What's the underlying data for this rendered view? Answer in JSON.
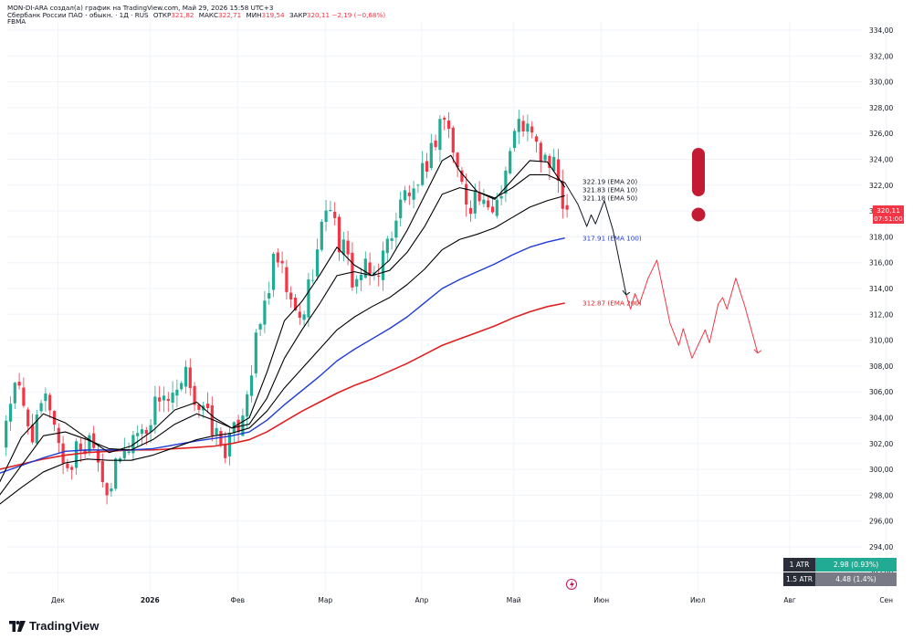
{
  "header": {
    "line1": "MON-DI-ARA создал(а) график на TradingView.com, Май 29, 2026 15:58 UTC+3",
    "symbol": "Сбербанк России ПАО - обыкн. · 1Д · RUS",
    "open_label": "ОТКР",
    "open": "321,82",
    "high_label": "МАКС",
    "high": "322,71",
    "low_label": "МИН",
    "low": "319,54",
    "close_label": "ЗАКР",
    "close": "320,11",
    "change": "−2,19 (−0,68%)",
    "indicator": "FBMA"
  },
  "price_label": {
    "value": "320,11",
    "countdown": "07:51:00"
  },
  "atr": [
    {
      "label": "1 ATR",
      "value": "2.98 (0.93%)",
      "color": "#22ab94"
    },
    {
      "label": "1.5 ATR",
      "value": "4.48 (1.4%)",
      "color": "#787b86"
    }
  ],
  "brand": "TradingView",
  "colors": {
    "up": "#22ab94",
    "down": "#f23645",
    "ema100": "#1f3bd6",
    "ema200": "#e02020",
    "ema_short": "#000000",
    "exclamation": "#c21b33"
  },
  "chart_data": {
    "type": "candlestick",
    "symbol": "Сбербанк России ПАО - обыкн.",
    "y_ticks": [
      "292,00",
      "294,00",
      "296,00",
      "298,00",
      "300,00",
      "302,00",
      "304,00",
      "306,00",
      "308,00",
      "310,00",
      "312,00",
      "314,00",
      "316,00",
      "318,00",
      "320,00",
      "322,00",
      "324,00",
      "326,00",
      "328,00",
      "330,00",
      "332,00",
      "334,00"
    ],
    "ylim": [
      290.5,
      335.4
    ],
    "x_ticks": [
      {
        "label": "Дек",
        "bold": false,
        "day": 0
      },
      {
        "label": "2026",
        "bold": true,
        "day": 21
      },
      {
        "label": "Фев",
        "bold": false,
        "day": 41
      },
      {
        "label": "Мар",
        "bold": false,
        "day": 61
      },
      {
        "label": "Апр",
        "bold": false,
        "day": 83
      },
      {
        "label": "Май",
        "bold": false,
        "day": 104
      },
      {
        "label": "Июн",
        "bold": false,
        "day": 124
      },
      {
        "label": "Июл",
        "bold": false,
        "day": 146
      },
      {
        "label": "Авг",
        "bold": false,
        "day": 167
      },
      {
        "label": "Сен",
        "bold": false,
        "day": 189
      }
    ],
    "series": [
      {
        "name": "EMA 10",
        "last": 321.83,
        "label": "321.83 (EMA 10)"
      },
      {
        "name": "EMA 20",
        "last": 322.19,
        "label": "322.19 (EMA 20)"
      },
      {
        "name": "EMA 50",
        "last": 321.18,
        "label": "321.18 (EMA 50)"
      },
      {
        "name": "EMA 100",
        "last": 317.91,
        "label": "317.91 (EMA 100)"
      },
      {
        "name": "EMA 200",
        "last": 312.87,
        "label": "312.87 (EMA 200)"
      }
    ],
    "price_path": [
      [
        -10,
        299.2
      ],
      [
        -8,
        297
      ],
      [
        -7,
        296.3
      ],
      [
        -5,
        301
      ],
      [
        -3,
        305
      ],
      [
        -1,
        306.5
      ],
      [
        1,
        304
      ],
      [
        3,
        302.5
      ],
      [
        5,
        305.5
      ],
      [
        7,
        304.8
      ],
      [
        9,
        301
      ],
      [
        11,
        300
      ],
      [
        13,
        302
      ],
      [
        15,
        301.5
      ],
      [
        16,
        303.5
      ],
      [
        18,
        300
      ],
      [
        20,
        298.2
      ],
      [
        22,
        300.5
      ],
      [
        24,
        301.5
      ],
      [
        26,
        303
      ],
      [
        28,
        302.8
      ],
      [
        30,
        304.6
      ],
      [
        32,
        306.2
      ],
      [
        34,
        305
      ],
      [
        36,
        305.8
      ],
      [
        38,
        307.5
      ],
      [
        40,
        305
      ],
      [
        42,
        304.2
      ],
      [
        44,
        303
      ],
      [
        46,
        301.5
      ],
      [
        48,
        302.3
      ],
      [
        50,
        304
      ],
      [
        52,
        307
      ],
      [
        54,
        310.5
      ],
      [
        56,
        313.5
      ],
      [
        58,
        316.5
      ],
      [
        60,
        314.5
      ],
      [
        62,
        312
      ],
      [
        64,
        311.5
      ],
      [
        66,
        315
      ],
      [
        68,
        317.5
      ],
      [
        70,
        321.5
      ],
      [
        72,
        318
      ],
      [
        74,
        316.5
      ],
      [
        76,
        314.3
      ],
      [
        78,
        315.5
      ],
      [
        80,
        314.8
      ],
      [
        82,
        316
      ],
      [
        84,
        318
      ],
      [
        86,
        320
      ],
      [
        88,
        321.8
      ],
      [
        90,
        320.5
      ],
      [
        92,
        323.5
      ],
      [
        94,
        325
      ],
      [
        96,
        327.8
      ],
      [
        98,
        325.5
      ],
      [
        100,
        322.5
      ],
      [
        102,
        320.5
      ],
      [
        104,
        321.5
      ],
      [
        106,
        319.5
      ],
      [
        108,
        320.5
      ],
      [
        110,
        322.5
      ],
      [
        112,
        325.5
      ],
      [
        114,
        327
      ],
      [
        116,
        326
      ],
      [
        118,
        324.5
      ],
      [
        120,
        323.8
      ],
      [
        122,
        323
      ],
      [
        123,
        321.8
      ],
      [
        124,
        320.1
      ]
    ],
    "ema10_path": [
      [
        -10,
        297
      ],
      [
        -5,
        299
      ],
      [
        0,
        302.5
      ],
      [
        5,
        304.3
      ],
      [
        10,
        303.6
      ],
      [
        15,
        302.4
      ],
      [
        20,
        301.3
      ],
      [
        25,
        301.8
      ],
      [
        30,
        303
      ],
      [
        35,
        304.6
      ],
      [
        40,
        305.2
      ],
      [
        44,
        304
      ],
      [
        48,
        303.2
      ],
      [
        52,
        304
      ],
      [
        56,
        307.5
      ],
      [
        60,
        311.5
      ],
      [
        64,
        313
      ],
      [
        68,
        315
      ],
      [
        72,
        317.2
      ],
      [
        76,
        315.8
      ],
      [
        80,
        315
      ],
      [
        84,
        316.2
      ],
      [
        88,
        318.5
      ],
      [
        92,
        321.2
      ],
      [
        96,
        323.9
      ],
      [
        98,
        324.3
      ],
      [
        100,
        323.1
      ],
      [
        104,
        321.5
      ],
      [
        108,
        320.9
      ],
      [
        112,
        322.4
      ],
      [
        116,
        323.9
      ],
      [
        120,
        323.8
      ],
      [
        124,
        321.83
      ]
    ],
    "ema20_path": [
      [
        -10,
        296
      ],
      [
        -5,
        298
      ],
      [
        0,
        300.3
      ],
      [
        5,
        302.6
      ],
      [
        10,
        302.9
      ],
      [
        15,
        302.3
      ],
      [
        20,
        301.6
      ],
      [
        25,
        301.5
      ],
      [
        30,
        302.3
      ],
      [
        35,
        303.5
      ],
      [
        40,
        304.3
      ],
      [
        44,
        303.8
      ],
      [
        48,
        303.2
      ],
      [
        52,
        303.5
      ],
      [
        56,
        305.5
      ],
      [
        60,
        308.6
      ],
      [
        64,
        310.8
      ],
      [
        68,
        312.8
      ],
      [
        72,
        315
      ],
      [
        76,
        315.3
      ],
      [
        80,
        315
      ],
      [
        84,
        315.4
      ],
      [
        88,
        316.8
      ],
      [
        92,
        318.8
      ],
      [
        96,
        321.3
      ],
      [
        100,
        321.8
      ],
      [
        104,
        321.5
      ],
      [
        108,
        321
      ],
      [
        112,
        321.8
      ],
      [
        116,
        322.8
      ],
      [
        120,
        322.8
      ],
      [
        124,
        322.19
      ]
    ],
    "ema50_path": [
      [
        -10,
        296
      ],
      [
        -5,
        297.3
      ],
      [
        0,
        298.6
      ],
      [
        5,
        299.8
      ],
      [
        10,
        300.5
      ],
      [
        15,
        300.8
      ],
      [
        20,
        300.7
      ],
      [
        25,
        300.7
      ],
      [
        30,
        301.1
      ],
      [
        35,
        301.7
      ],
      [
        40,
        302.3
      ],
      [
        44,
        302.6
      ],
      [
        48,
        302.8
      ],
      [
        52,
        303.2
      ],
      [
        56,
        304.5
      ],
      [
        60,
        306.3
      ],
      [
        64,
        307.8
      ],
      [
        68,
        309.3
      ],
      [
        72,
        310.8
      ],
      [
        76,
        311.8
      ],
      [
        80,
        312.6
      ],
      [
        84,
        313.3
      ],
      [
        88,
        314.3
      ],
      [
        92,
        315.5
      ],
      [
        96,
        317
      ],
      [
        100,
        317.8
      ],
      [
        104,
        318.2
      ],
      [
        108,
        318.7
      ],
      [
        112,
        319.5
      ],
      [
        116,
        320.3
      ],
      [
        120,
        320.8
      ],
      [
        124,
        321.18
      ]
    ],
    "ema100_path": [
      [
        -10,
        299.3
      ],
      [
        -5,
        299.7
      ],
      [
        0,
        300.3
      ],
      [
        5,
        300.9
      ],
      [
        10,
        301.4
      ],
      [
        15,
        301.5
      ],
      [
        20,
        301.5
      ],
      [
        25,
        301.5
      ],
      [
        30,
        301.6
      ],
      [
        35,
        301.9
      ],
      [
        40,
        302.2
      ],
      [
        44,
        302.4
      ],
      [
        48,
        302.6
      ],
      [
        52,
        302.9
      ],
      [
        56,
        303.8
      ],
      [
        60,
        305
      ],
      [
        64,
        306.1
      ],
      [
        68,
        307.2
      ],
      [
        72,
        308.4
      ],
      [
        76,
        309.3
      ],
      [
        80,
        310.1
      ],
      [
        84,
        310.9
      ],
      [
        88,
        311.8
      ],
      [
        92,
        312.9
      ],
      [
        96,
        314
      ],
      [
        100,
        314.7
      ],
      [
        104,
        315.3
      ],
      [
        108,
        315.9
      ],
      [
        112,
        316.6
      ],
      [
        116,
        317.2
      ],
      [
        120,
        317.6
      ],
      [
        124,
        317.91
      ]
    ],
    "ema200_path": [
      [
        -10,
        299.6
      ],
      [
        -5,
        300
      ],
      [
        0,
        300.4
      ],
      [
        5,
        300.8
      ],
      [
        10,
        301.1
      ],
      [
        15,
        301.3
      ],
      [
        20,
        301.4
      ],
      [
        25,
        301.5
      ],
      [
        30,
        301.5
      ],
      [
        35,
        301.6
      ],
      [
        40,
        301.7
      ],
      [
        44,
        301.8
      ],
      [
        48,
        302
      ],
      [
        52,
        302.3
      ],
      [
        56,
        302.9
      ],
      [
        60,
        303.7
      ],
      [
        64,
        304.5
      ],
      [
        68,
        305.2
      ],
      [
        72,
        305.9
      ],
      [
        76,
        306.5
      ],
      [
        80,
        307
      ],
      [
        84,
        307.6
      ],
      [
        88,
        308.2
      ],
      [
        92,
        308.9
      ],
      [
        96,
        309.6
      ],
      [
        100,
        310.1
      ],
      [
        104,
        310.6
      ],
      [
        108,
        311.1
      ],
      [
        112,
        311.7
      ],
      [
        116,
        312.2
      ],
      [
        120,
        312.6
      ],
      [
        124,
        312.87
      ]
    ],
    "projection_black": [
      [
        124,
        322.2
      ],
      [
        127,
        320.5
      ],
      [
        129,
        318.8
      ],
      [
        130,
        319.7
      ],
      [
        131,
        319
      ],
      [
        133,
        320.8
      ],
      [
        135,
        318.5
      ],
      [
        138,
        313.5
      ]
    ],
    "projection_red": [
      [
        138,
        313.5
      ],
      [
        139,
        312.4
      ],
      [
        140,
        313.6
      ],
      [
        141,
        312.8
      ],
      [
        143,
        314.8
      ],
      [
        145,
        316.2
      ],
      [
        148,
        311.3
      ],
      [
        150,
        309.6
      ],
      [
        151,
        310.9
      ],
      [
        153,
        308.6
      ],
      [
        156,
        310.8
      ],
      [
        157,
        309.8
      ],
      [
        159,
        312.8
      ],
      [
        160,
        313.3
      ],
      [
        161,
        312.4
      ],
      [
        163,
        314.8
      ],
      [
        165,
        312.7
      ],
      [
        168,
        309
      ]
    ]
  }
}
